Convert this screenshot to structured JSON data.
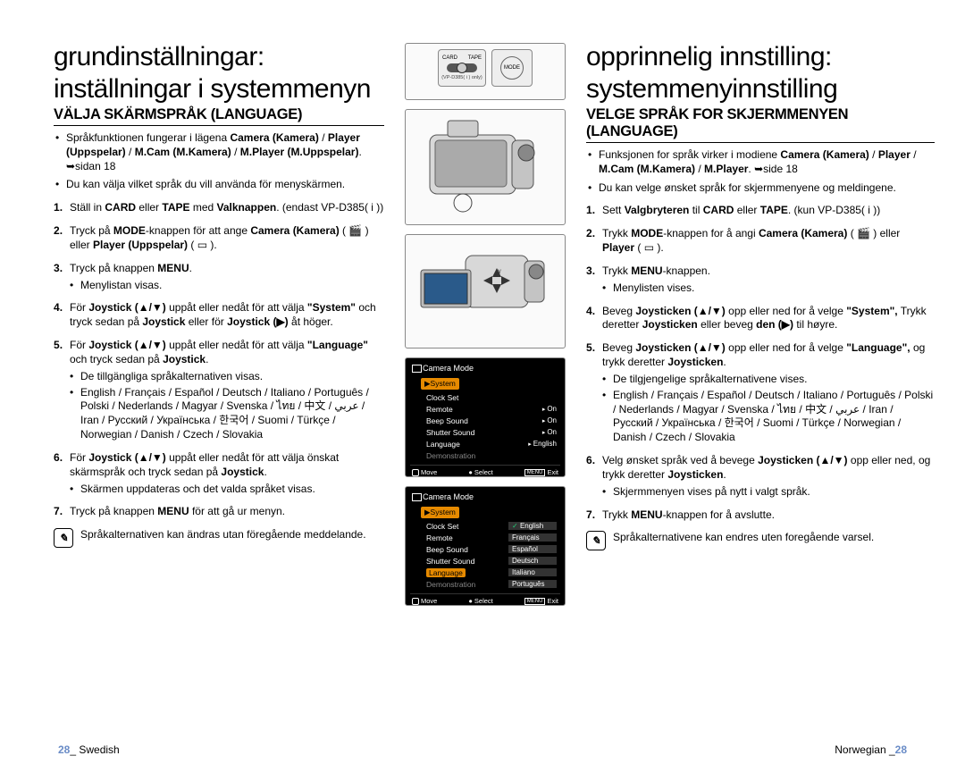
{
  "left": {
    "title_l1": "grundinställningar:",
    "title_l2": "inställningar i systemmenyn",
    "section": "VÄLJA SKÄRMSPRÅK (LANGUAGE)",
    "b1": "Språkfunktionen fungerar i lägena <b>Camera (Kamera)</b> / <b>Player (Uppspelar)</b> / <b>M.Cam (M.Kamera)</b> / <b>M.Player (M.Uppspelar)</b>. ➥sidan 18",
    "b2": "Du kan välja vilket språk du vill använda för menyskärmen.",
    "s1": "Ställ in <b>CARD</b> eller <b>TAPE</b> med <b>Valknappen</b>. (endast VP-D385( i ))",
    "s2": "Tryck på <b>MODE</b>-knappen för att ange <b>Camera (Kamera)</b> ( 🎬 ) eller <b>Player (Uppspelar)</b> ( ▭ ).",
    "s3": "Tryck på knappen <b>MENU</b>.",
    "s3sub": "Menylistan visas.",
    "s4": "För <b>Joystick (▲/▼)</b> uppåt eller nedåt för att välja <b>\"System\"</b> och tryck sedan på <b>Joystick</b> eller för <b>Joystick (▶)</b> åt höger.",
    "s5": "För <b>Joystick (▲/▼)</b> uppåt eller nedåt för att välja <b>\"Language\"</b> och tryck sedan på <b>Joystick</b>.",
    "s5sub1": "De tillgängliga språkalternativen visas.",
    "s5sub2": "English / Français / Español / Deutsch / Italiano / Português / Polski / Nederlands / Magyar / Svenska / ไทย / 中文 / ﻋﺮﺑﻲ / Iran / Русский / Українська / 한국어 / Suomi / Türkçe / Norwegian / Danish / Czech / Slovakia",
    "s6": "För <b>Joystick (▲/▼)</b> uppåt eller nedåt för att välja önskat skärmspråk och tryck sedan på <b>Joystick</b>.",
    "s6sub": "Skärmen uppdateras och det valda språket visas.",
    "s7": "Tryck på knappen <b>MENU</b> för att gå ur menyn.",
    "note": "Språkalternativen kan ändras utan föregående meddelande."
  },
  "right": {
    "title_l1": "opprinnelig innstilling:",
    "title_l2": "systemmenyinnstilling",
    "section": "VELGE SPRÅK FOR SKJERMMENYEN (LANGUAGE)",
    "b1": "Funksjonen for språk virker i modiene <b>Camera (Kamera)</b> / <b>Player</b> / <b>M.Cam (M.Kamera)</b> / <b>M.Player</b>. ➥side 18",
    "b2": "Du kan velge ønsket språk for skjermmenyene og meldingene.",
    "s1": "Sett <b>Valgbryteren</b> til <b>CARD</b> eller <b>TAPE</b>. (kun VP-D385( i ))",
    "s2": "Trykk <b>MODE</b>-knappen for å angi <b>Camera (Kamera)</b> ( 🎬 ) eller <b>Player</b> ( ▭ ).",
    "s3": "Trykk <b>MENU</b>-knappen.",
    "s3sub": "Menylisten vises.",
    "s4": "Beveg <b>Joysticken (▲/▼)</b> opp eller ned for å velge <b>\"System\",</b> Trykk deretter <b>Joysticken</b> eller beveg <b>den (▶)</b> til høyre.",
    "s5": "Beveg <b>Joysticken (▲/▼)</b> opp eller ned for å velge <b>\"Language\",</b> og trykk deretter <b>Joysticken</b>.",
    "s5sub1": "De tilgjengelige språkalternativene vises.",
    "s5sub2": "English / Français / Español / Deutsch / Italiano / Português / Polski / Nederlands / Magyar / Svenska / ไทย / 中文 / ﻋﺮﺑﻲ / Iran / Русский / Українська / 한국어 / Suomi / Türkçe / Norwegian / Danish / Czech / Slovakia",
    "s6": "Velg ønsket språk ved å bevege <b>Joysticken (▲/▼)</b> opp eller ned, og trykk deretter <b>Joysticken</b>.",
    "s6sub": "Skjermmenyen vises på nytt i valgt språk.",
    "s7": "Trykk <b>MENU</b>-knappen for å avslutte.",
    "note": "Språkalternativene kan endres uten foregående varsel."
  },
  "mid": {
    "switch": {
      "left": "CARD",
      "right": "TAPE",
      "sub": "(VP-D385( i ) only)"
    },
    "modebtn": "MODE",
    "osd1": {
      "title": "Camera Mode",
      "highlight": "▶System",
      "rows": [
        {
          "k": "Clock Set",
          "v": ""
        },
        {
          "k": "Remote",
          "v": "On",
          "arrow": true
        },
        {
          "k": "Beep Sound",
          "v": "On",
          "arrow": true
        },
        {
          "k": "Shutter Sound",
          "v": "On",
          "arrow": true
        },
        {
          "k": "Language",
          "v": "English",
          "arrow": true
        },
        {
          "k": "Demonstration",
          "v": "",
          "dim": true
        }
      ],
      "foot": {
        "move": "Move",
        "select": "Select",
        "exit": "MENU Exit"
      }
    },
    "osd2": {
      "title": "Camera Mode",
      "highlight": "▶System",
      "rows": [
        {
          "k": "Clock Set",
          "v": "English",
          "sel": true
        },
        {
          "k": "Remote",
          "v": "Français"
        },
        {
          "k": "Beep Sound",
          "v": "Español"
        },
        {
          "k": "Shutter Sound",
          "v": "Deutsch"
        },
        {
          "k": "Language",
          "v": "Italiano",
          "hl": true
        },
        {
          "k": "Demonstration",
          "v": "Português",
          "dim": true
        }
      ],
      "foot": {
        "move": "Move",
        "select": "Select",
        "exit": "MENU Exit"
      }
    }
  },
  "footer": {
    "left_pg": "28",
    "left_lang": "_ Swedish",
    "right_lang": "Norwegian _",
    "right_pg": "28"
  }
}
